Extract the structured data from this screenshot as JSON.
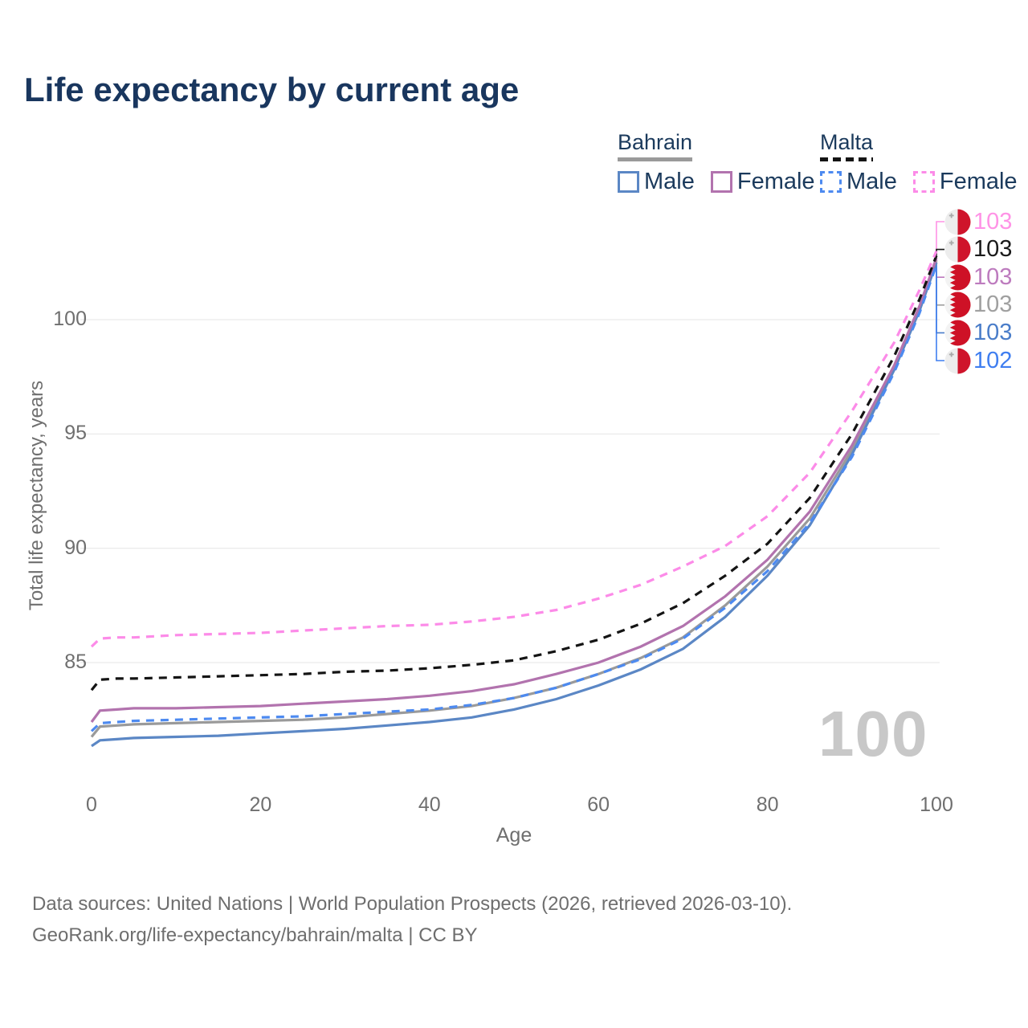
{
  "title": "Life expectancy by current age",
  "watermark": "100",
  "legend": {
    "groups": [
      {
        "country": "Bahrain",
        "line_style": "solid",
        "line_color": "#9a9a9a",
        "items": [
          {
            "label": "Male",
            "color": "#5b87c5",
            "dashed": false
          },
          {
            "label": "Female",
            "color": "#b273ae",
            "dashed": false
          }
        ]
      },
      {
        "country": "Malta",
        "line_style": "dashed",
        "line_color": "#141414",
        "items": [
          {
            "label": "Male",
            "color": "#4d8af0",
            "dashed": true
          },
          {
            "label": "Female",
            "color": "#fc8be8",
            "dashed": true
          }
        ]
      }
    ]
  },
  "end_labels": [
    {
      "value": "103",
      "series": "Malta Female",
      "country": "Malta",
      "color": "#ff93e6"
    },
    {
      "value": "103",
      "series": "Malta Both sexes",
      "country": "Malta",
      "color": "#1a1a1a"
    },
    {
      "value": "103",
      "series": "Bahrain Female",
      "country": "Bahrain",
      "color": "#bd7bbe"
    },
    {
      "value": "103",
      "series": "Bahrain Both sexes",
      "country": "Bahrain",
      "color": "#a0a0a0"
    },
    {
      "value": "103",
      "series": "Bahrain Male",
      "country": "Bahrain",
      "color": "#4a7dc9"
    },
    {
      "value": "102",
      "series": "Malta Male",
      "country": "Malta",
      "color": "#3f7ef0"
    }
  ],
  "footer": {
    "line1": "Data sources: United Nations | World Population Prospects (2026, retrieved 2026-03-10).",
    "line2": "GeoRank.org/life-expectancy/bahrain/malta | CC BY"
  },
  "flag_colors": {
    "malta_red": "#cf142b",
    "malta_white": "#ededed",
    "malta_cross": "#a9a9a9",
    "bahrain_red": "#ce1126",
    "bahrain_white": "#f3f3f3"
  },
  "chart_data": {
    "type": "line",
    "title": "Life expectancy by current age",
    "xlabel": "Age",
    "ylabel": "Total life expectancy, years",
    "x_ticks": [
      0,
      20,
      40,
      60,
      80,
      100
    ],
    "y_ticks": [
      85,
      90,
      95,
      100
    ],
    "xlim": [
      0,
      100
    ],
    "ylim": [
      81,
      103.5
    ],
    "grid": "horizontal",
    "legend_position": "top-right",
    "x": [
      0,
      1,
      3,
      5,
      10,
      15,
      20,
      25,
      30,
      35,
      40,
      45,
      50,
      55,
      60,
      65,
      70,
      75,
      80,
      85,
      90,
      95,
      98,
      100
    ],
    "series": [
      {
        "name": "Malta Female",
        "country": "Malta",
        "sex": "female",
        "color": "#fc8be8",
        "dashed": true,
        "end_value": 103,
        "values": [
          85.7,
          86.05,
          86.1,
          86.1,
          86.2,
          86.25,
          86.3,
          86.4,
          86.5,
          86.6,
          86.65,
          86.8,
          87.0,
          87.3,
          87.8,
          88.4,
          89.2,
          90.1,
          91.4,
          93.3,
          96.0,
          99.0,
          101.3,
          103.0
        ]
      },
      {
        "name": "Malta Both sexes",
        "country": "Malta",
        "sex": "both",
        "color": "#141414",
        "dashed": true,
        "end_value": 103,
        "values": [
          83.8,
          84.25,
          84.3,
          84.3,
          84.35,
          84.4,
          84.45,
          84.5,
          84.6,
          84.65,
          84.75,
          84.9,
          85.1,
          85.5,
          86.0,
          86.7,
          87.6,
          88.8,
          90.2,
          92.2,
          95.0,
          98.4,
          100.9,
          102.8
        ]
      },
      {
        "name": "Bahrain Female",
        "country": "Bahrain",
        "sex": "female",
        "color": "#b273ae",
        "dashed": false,
        "end_value": 103,
        "values": [
          82.4,
          82.9,
          82.95,
          83.0,
          83.0,
          83.05,
          83.1,
          83.2,
          83.3,
          83.4,
          83.55,
          83.75,
          84.05,
          84.5,
          85.0,
          85.7,
          86.6,
          87.9,
          89.5,
          91.6,
          94.5,
          98.0,
          100.6,
          102.7
        ]
      },
      {
        "name": "Bahrain Both sexes",
        "country": "Bahrain",
        "sex": "both",
        "color": "#9a9a9a",
        "dashed": false,
        "end_value": 103,
        "values": [
          81.75,
          82.2,
          82.25,
          82.3,
          82.35,
          82.4,
          82.45,
          82.5,
          82.6,
          82.75,
          82.9,
          83.1,
          83.45,
          83.9,
          84.5,
          85.2,
          86.1,
          87.5,
          89.2,
          91.3,
          94.3,
          97.9,
          100.5,
          102.6
        ]
      },
      {
        "name": "Bahrain Male",
        "country": "Bahrain",
        "sex": "male",
        "color": "#5b87c5",
        "dashed": false,
        "end_value": 103,
        "values": [
          81.35,
          81.6,
          81.65,
          81.7,
          81.75,
          81.8,
          81.9,
          82.0,
          82.1,
          82.25,
          82.4,
          82.6,
          82.95,
          83.4,
          84.0,
          84.7,
          85.6,
          87.0,
          88.8,
          91.0,
          94.1,
          97.8,
          100.4,
          102.5
        ]
      },
      {
        "name": "Malta Male",
        "country": "Malta",
        "sex": "male",
        "color": "#4d8af0",
        "dashed": true,
        "end_value": 102,
        "values": [
          82.0,
          82.35,
          82.4,
          82.45,
          82.5,
          82.55,
          82.6,
          82.65,
          82.75,
          82.85,
          82.95,
          83.15,
          83.45,
          83.9,
          84.5,
          85.15,
          86.05,
          87.4,
          89.0,
          91.1,
          94.0,
          97.7,
          100.3,
          102.4
        ]
      }
    ]
  }
}
